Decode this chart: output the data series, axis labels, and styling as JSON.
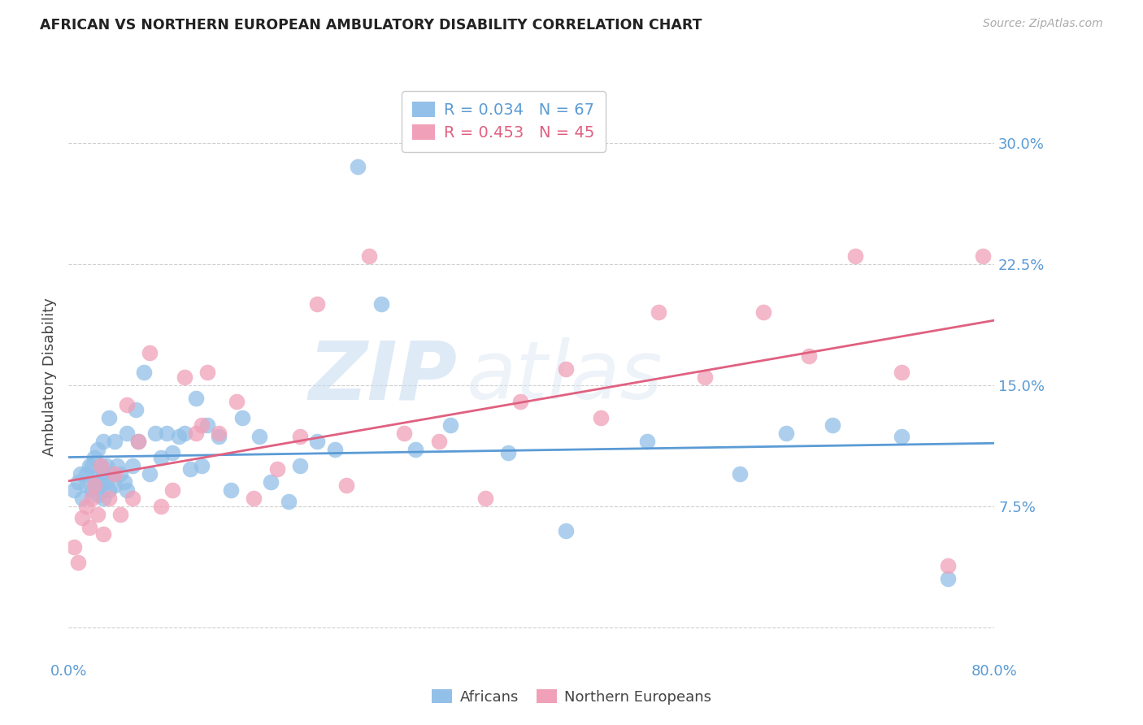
{
  "title": "AFRICAN VS NORTHERN EUROPEAN AMBULATORY DISABILITY CORRELATION CHART",
  "source": "Source: ZipAtlas.com",
  "ylabel": "Ambulatory Disability",
  "yticks": [
    0.0,
    0.075,
    0.15,
    0.225,
    0.3
  ],
  "ytick_labels": [
    "",
    "7.5%",
    "15.0%",
    "22.5%",
    "30.0%"
  ],
  "xticks": [
    0.0,
    0.1,
    0.2,
    0.3,
    0.4,
    0.5,
    0.6,
    0.7,
    0.8
  ],
  "xlim": [
    0.0,
    0.8
  ],
  "ylim": [
    -0.02,
    0.33
  ],
  "africans_R": 0.034,
  "africans_N": 67,
  "northern_europeans_R": 0.453,
  "northern_europeans_N": 45,
  "africans_color": "#92c0e8",
  "northern_europeans_color": "#f0a0b8",
  "trend_african_color": "#5b9bd5",
  "trend_ne_color": "#e06080",
  "watermark_zip": "ZIP",
  "watermark_atlas": "atlas",
  "africans_x": [
    0.005,
    0.008,
    0.01,
    0.012,
    0.015,
    0.015,
    0.018,
    0.02,
    0.02,
    0.022,
    0.022,
    0.025,
    0.025,
    0.025,
    0.028,
    0.028,
    0.03,
    0.03,
    0.03,
    0.032,
    0.033,
    0.035,
    0.035,
    0.038,
    0.04,
    0.04,
    0.042,
    0.045,
    0.048,
    0.05,
    0.05,
    0.055,
    0.058,
    0.06,
    0.065,
    0.07,
    0.075,
    0.08,
    0.085,
    0.09,
    0.095,
    0.1,
    0.105,
    0.11,
    0.115,
    0.12,
    0.13,
    0.14,
    0.15,
    0.165,
    0.175,
    0.19,
    0.2,
    0.215,
    0.23,
    0.25,
    0.27,
    0.3,
    0.33,
    0.38,
    0.43,
    0.5,
    0.58,
    0.62,
    0.66,
    0.72,
    0.76
  ],
  "africans_y": [
    0.085,
    0.09,
    0.095,
    0.08,
    0.088,
    0.095,
    0.1,
    0.085,
    0.1,
    0.092,
    0.105,
    0.082,
    0.09,
    0.11,
    0.088,
    0.1,
    0.08,
    0.095,
    0.115,
    0.09,
    0.1,
    0.085,
    0.13,
    0.095,
    0.088,
    0.115,
    0.1,
    0.095,
    0.09,
    0.085,
    0.12,
    0.1,
    0.135,
    0.115,
    0.158,
    0.095,
    0.12,
    0.105,
    0.12,
    0.108,
    0.118,
    0.12,
    0.098,
    0.142,
    0.1,
    0.125,
    0.118,
    0.085,
    0.13,
    0.118,
    0.09,
    0.078,
    0.1,
    0.115,
    0.11,
    0.285,
    0.2,
    0.11,
    0.125,
    0.108,
    0.06,
    0.115,
    0.095,
    0.12,
    0.125,
    0.118,
    0.03
  ],
  "ne_x": [
    0.005,
    0.008,
    0.012,
    0.015,
    0.018,
    0.02,
    0.022,
    0.025,
    0.028,
    0.03,
    0.035,
    0.04,
    0.045,
    0.05,
    0.055,
    0.06,
    0.07,
    0.08,
    0.09,
    0.1,
    0.11,
    0.115,
    0.12,
    0.13,
    0.145,
    0.16,
    0.18,
    0.2,
    0.215,
    0.24,
    0.26,
    0.29,
    0.32,
    0.36,
    0.39,
    0.43,
    0.46,
    0.51,
    0.55,
    0.6,
    0.64,
    0.68,
    0.72,
    0.76,
    0.79
  ],
  "ne_y": [
    0.05,
    0.04,
    0.068,
    0.075,
    0.062,
    0.08,
    0.088,
    0.07,
    0.1,
    0.058,
    0.08,
    0.095,
    0.07,
    0.138,
    0.08,
    0.115,
    0.17,
    0.075,
    0.085,
    0.155,
    0.12,
    0.125,
    0.158,
    0.12,
    0.14,
    0.08,
    0.098,
    0.118,
    0.2,
    0.088,
    0.23,
    0.12,
    0.115,
    0.08,
    0.14,
    0.16,
    0.13,
    0.195,
    0.155,
    0.195,
    0.168,
    0.23,
    0.158,
    0.038,
    0.23
  ],
  "legend_R_african": "R = 0.034",
  "legend_N_african": "N = 67",
  "legend_R_ne": "R = 0.453",
  "legend_N_ne": "N = 45",
  "bottom_legend_labels": [
    "Africans",
    "Northern Europeans"
  ]
}
